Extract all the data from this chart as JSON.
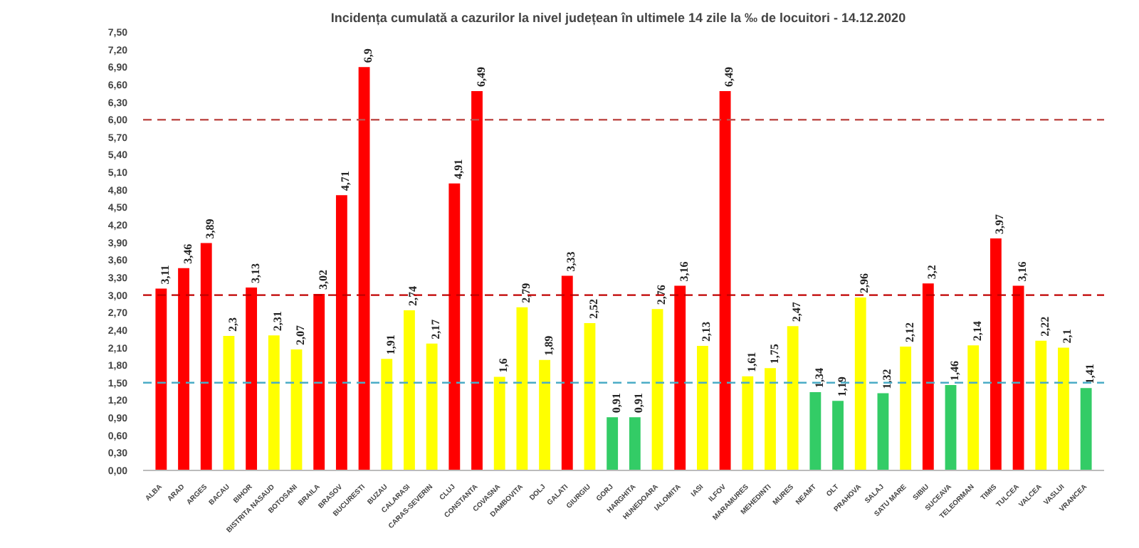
{
  "chart_data": {
    "type": "bar",
    "title": "Incidența cumulată a cazurilor la nivel județean în ultimele 14 zile   la ‰ de locuitori  - 14.12.2020",
    "categories": [
      "ALBA",
      "ARAD",
      "ARGES",
      "BACAU",
      "BIHOR",
      "BISTRITA NASAUD",
      "BOTOSANI",
      "BRAILA",
      "BRASOV",
      "BUCURESTI",
      "BUZAU",
      "CALARASI",
      "CARAS-SEVERIN",
      "CLUJ",
      "CONSTANTA",
      "COVASNA",
      "DAMBOVITA",
      "DOLJ",
      "GALATI",
      "GIURGIU",
      "GORJ",
      "HARGHITA",
      "HUNEDOARA",
      "IALOMITA",
      "IASI",
      "ILFOV",
      "MARAMURES",
      "MEHEDINTI",
      "MURES",
      "NEAMT",
      "OLT",
      "PRAHOVA",
      "SALAJ",
      "SATU MARE",
      "SIBIU",
      "SUCEAVA",
      "TELEORMAN",
      "TIMIS",
      "TULCEA",
      "VALCEA",
      "VASLUI",
      "VRANCEA"
    ],
    "values": [
      3.11,
      3.46,
      3.89,
      2.3,
      3.13,
      2.31,
      2.07,
      3.02,
      4.71,
      6.9,
      1.91,
      2.74,
      2.17,
      4.91,
      6.49,
      1.6,
      2.79,
      1.89,
      3.33,
      2.52,
      0.91,
      0.91,
      2.76,
      3.16,
      2.13,
      6.49,
      1.61,
      1.75,
      2.47,
      1.34,
      1.19,
      2.96,
      1.32,
      2.12,
      3.2,
      1.46,
      2.14,
      3.97,
      3.16,
      2.22,
      2.1,
      1.41
    ],
    "value_labels": [
      "3,11",
      "3,46",
      "3,89",
      "2,3",
      "3,13",
      "2,31",
      "2,07",
      "3,02",
      "4,71",
      "6,9",
      "1,91",
      "2,74",
      "2,17",
      "4,91",
      "6,49",
      "1,6",
      "2,79",
      "1,89",
      "3,33",
      "2,52",
      "0,91",
      "0,91",
      "2,76",
      "3,16",
      "2,13",
      "6,49",
      "1,61",
      "1,75",
      "2,47",
      "1,34",
      "1,19",
      "2,96",
      "1,32",
      "2,12",
      "3,2",
      "1,46",
      "2,14",
      "3,97",
      "3,16",
      "2,22",
      "2,1",
      "1,41"
    ],
    "colors": [
      "#ff0000",
      "#ff0000",
      "#ff0000",
      "#ffff00",
      "#ff0000",
      "#ffff00",
      "#ffff00",
      "#ff0000",
      "#ff0000",
      "#ff0000",
      "#ffff00",
      "#ffff00",
      "#ffff00",
      "#ff0000",
      "#ff0000",
      "#ffff00",
      "#ffff00",
      "#ffff00",
      "#ff0000",
      "#ffff00",
      "#33cc66",
      "#33cc66",
      "#ffff00",
      "#ff0000",
      "#ffff00",
      "#ff0000",
      "#ffff00",
      "#ffff00",
      "#ffff00",
      "#33cc66",
      "#33cc66",
      "#ffff00",
      "#33cc66",
      "#ffff00",
      "#ff0000",
      "#33cc66",
      "#ffff00",
      "#ff0000",
      "#ff0000",
      "#ffff00",
      "#ffff00",
      "#33cc66"
    ],
    "ylim": [
      0,
      7.5
    ],
    "yticks": [
      {
        "value": 0,
        "label": "0,00"
      },
      {
        "value": 0.3,
        "label": "0,30"
      },
      {
        "value": 0.6,
        "label": "0,60"
      },
      {
        "value": 0.9,
        "label": "0,90"
      },
      {
        "value": 1.2,
        "label": "1,20"
      },
      {
        "value": 1.5,
        "label": "1,50"
      },
      {
        "value": 1.8,
        "label": "1,80"
      },
      {
        "value": 2.1,
        "label": "2,10"
      },
      {
        "value": 2.4,
        "label": "2,40"
      },
      {
        "value": 2.7,
        "label": "2,70"
      },
      {
        "value": 3.0,
        "label": "3,00"
      },
      {
        "value": 3.3,
        "label": "3,30"
      },
      {
        "value": 3.6,
        "label": "3,60"
      },
      {
        "value": 3.9,
        "label": "3,90"
      },
      {
        "value": 4.2,
        "label": "4,20"
      },
      {
        "value": 4.5,
        "label": "4,50"
      },
      {
        "value": 4.8,
        "label": "4,80"
      },
      {
        "value": 5.1,
        "label": "5,10"
      },
      {
        "value": 5.4,
        "label": "5,40"
      },
      {
        "value": 5.7,
        "label": "5,70"
      },
      {
        "value": 6.0,
        "label": "6,00"
      },
      {
        "value": 6.3,
        "label": "6,30"
      },
      {
        "value": 6.6,
        "label": "6,60"
      },
      {
        "value": 6.9,
        "label": "6,90"
      },
      {
        "value": 7.2,
        "label": "7,20"
      },
      {
        "value": 7.5,
        "label": "7,50"
      }
    ],
    "ref_lines": [
      {
        "axis": "y",
        "value": 6,
        "color": "#c0504d",
        "line_style": "dashed"
      },
      {
        "axis": "y",
        "value": 3,
        "color": "#c00000",
        "line_style": "dashed"
      },
      {
        "axis": "y",
        "value": 1.5,
        "color": "#4bacc6",
        "line_style": "dashed"
      }
    ],
    "grid": false
  }
}
